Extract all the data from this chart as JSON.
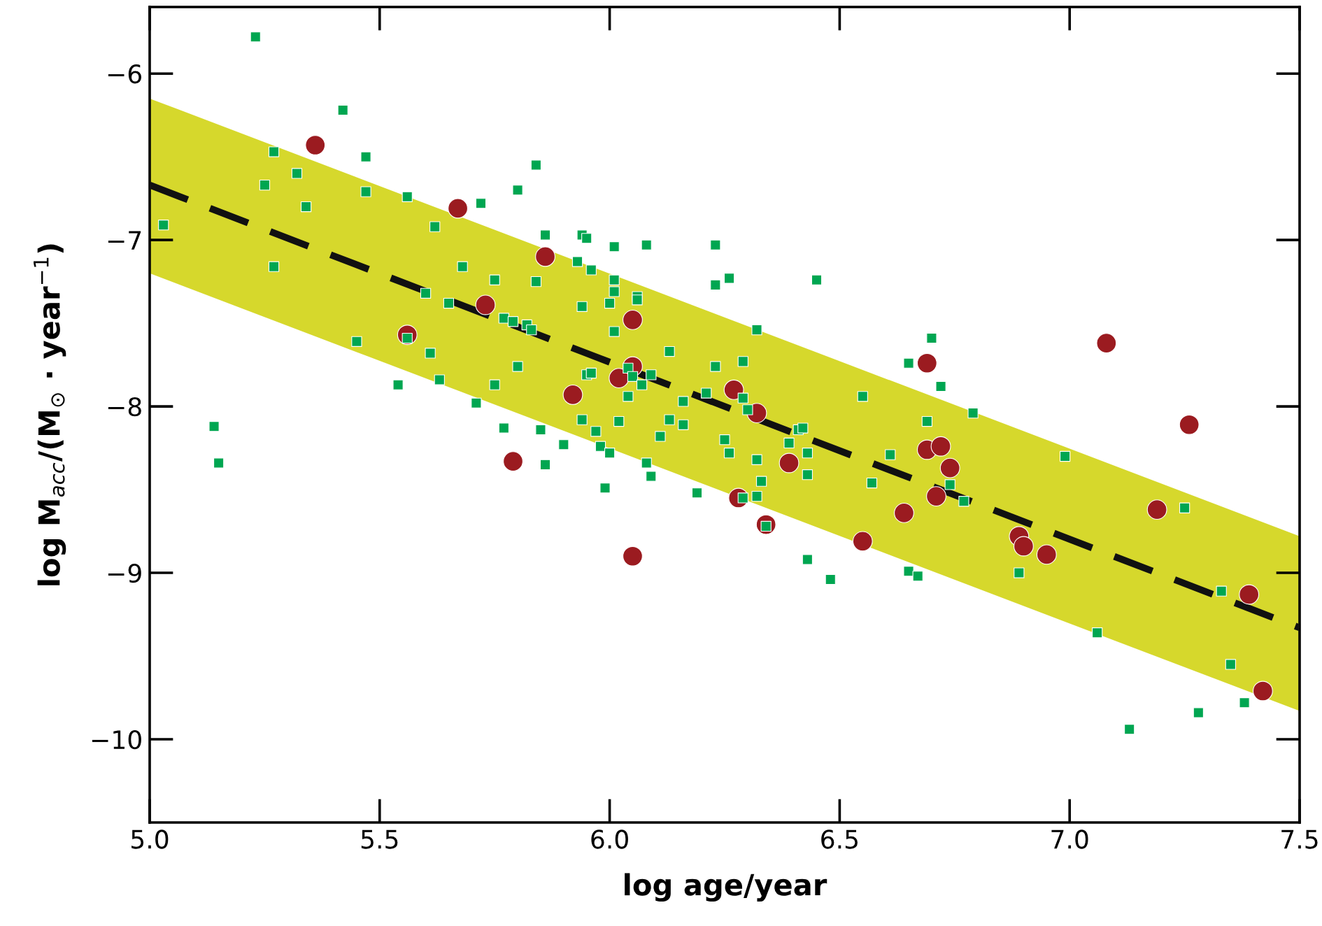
{
  "chart_data": {
    "type": "scatter",
    "xlabel": "log age/year",
    "ylabel": "log M$_{acc}$/(M$_{⊙}$ · year$^{−1}$)",
    "xlim": [
      5.0,
      7.5
    ],
    "ylim": [
      -10.5,
      -5.6
    ],
    "xticks": [
      {
        "value": 5.0,
        "label": "5.0"
      },
      {
        "value": 5.5,
        "label": "5.5"
      },
      {
        "value": 6.0,
        "label": "6.0"
      },
      {
        "value": 6.5,
        "label": "6.5"
      },
      {
        "value": 7.0,
        "label": "7.0"
      },
      {
        "value": 7.5,
        "label": "7.5"
      }
    ],
    "yticks": [
      {
        "value": -10,
        "label": "−10"
      },
      {
        "value": -9,
        "label": "−9"
      },
      {
        "value": -8,
        "label": "−8"
      },
      {
        "value": -7,
        "label": "−7"
      },
      {
        "value": -6,
        "label": "−6"
      }
    ],
    "grid": false,
    "series": [
      {
        "type": "line",
        "color": "#111111",
        "marker": "none",
        "line_style": "dashed",
        "x": [
          5.0,
          7.5
        ],
        "values": [
          -6.67,
          -9.33
        ],
        "lower": [
          -7.2,
          -9.83
        ],
        "upper": [
          -6.15,
          -8.78
        ]
      },
      {
        "marker": "circle",
        "color": "#9b1b20",
        "x": [
          5.36,
          5.67,
          5.86,
          5.73,
          5.56,
          6.05,
          6.05,
          6.02,
          5.92,
          5.79,
          6.05,
          6.27,
          6.32,
          6.39,
          6.28,
          6.34,
          6.55,
          6.69,
          6.69,
          6.72,
          6.74,
          6.71,
          6.64,
          7.08,
          7.26,
          7.19,
          6.89,
          6.9,
          6.95,
          7.39,
          7.42
        ],
        "values": [
          -6.43,
          -6.81,
          -7.1,
          -7.39,
          -7.57,
          -7.48,
          -7.76,
          -7.83,
          -7.93,
          -8.33,
          -8.9,
          -7.9,
          -8.04,
          -8.34,
          -8.55,
          -8.71,
          -8.81,
          -7.74,
          -8.26,
          -8.24,
          -8.37,
          -8.54,
          -8.64,
          -7.62,
          -8.11,
          -8.62,
          -8.78,
          -8.84,
          -8.89,
          -9.13,
          -9.71
        ]
      },
      {
        "marker": "square",
        "color": "#00a651",
        "x": [
          5.23,
          5.42,
          5.27,
          5.47,
          5.32,
          5.25,
          5.47,
          5.34,
          5.56,
          5.03,
          5.62,
          5.27,
          5.6,
          5.65,
          5.45,
          5.56,
          5.61,
          5.54,
          5.63,
          5.14,
          5.15,
          5.84,
          5.8,
          5.72,
          5.86,
          5.94,
          5.95,
          6.01,
          6.08,
          5.68,
          5.75,
          5.84,
          5.93,
          5.96,
          6.01,
          6.01,
          6.06,
          6.06,
          6.0,
          5.94,
          5.77,
          5.79,
          5.82,
          5.83,
          6.01,
          6.13,
          5.8,
          5.75,
          5.95,
          5.96,
          6.04,
          6.05,
          6.07,
          6.09,
          6.04,
          5.71,
          5.94,
          6.02,
          6.13,
          5.97,
          6.11,
          5.77,
          5.85,
          5.9,
          5.98,
          6.0,
          5.86,
          6.08,
          6.09,
          5.99,
          6.23,
          6.23,
          6.26,
          6.45,
          6.32,
          6.7,
          6.65,
          6.72,
          6.23,
          6.29,
          6.21,
          6.16,
          6.29,
          6.3,
          6.16,
          6.55,
          6.41,
          6.42,
          6.25,
          6.26,
          6.39,
          6.43,
          6.32,
          6.43,
          6.33,
          6.19,
          6.29,
          6.32,
          6.34,
          6.57,
          6.61,
          6.69,
          6.74,
          6.77,
          6.43,
          6.48,
          6.65,
          6.67,
          6.79,
          6.99,
          6.89,
          7.06,
          7.25,
          7.33,
          7.35,
          7.38,
          7.28,
          7.13
        ],
        "values": [
          -5.78,
          -6.22,
          -6.47,
          -6.5,
          -6.6,
          -6.67,
          -6.71,
          -6.8,
          -6.74,
          -6.91,
          -6.92,
          -7.16,
          -7.32,
          -7.38,
          -7.61,
          -7.59,
          -7.68,
          -7.87,
          -7.84,
          -8.12,
          -8.34,
          -6.55,
          -6.7,
          -6.78,
          -6.97,
          -6.97,
          -6.99,
          -7.04,
          -7.03,
          -7.16,
          -7.24,
          -7.25,
          -7.13,
          -7.18,
          -7.24,
          -7.31,
          -7.34,
          -7.36,
          -7.38,
          -7.4,
          -7.47,
          -7.49,
          -7.51,
          -7.54,
          -7.55,
          -7.67,
          -7.76,
          -7.87,
          -7.81,
          -7.8,
          -7.77,
          -7.82,
          -7.87,
          -7.81,
          -7.94,
          -7.98,
          -8.08,
          -8.09,
          -8.08,
          -8.15,
          -8.18,
          -8.13,
          -8.14,
          -8.23,
          -8.24,
          -8.28,
          -8.35,
          -8.34,
          -8.42,
          -8.49,
          -7.03,
          -7.27,
          -7.23,
          -7.24,
          -7.54,
          -7.59,
          -7.74,
          -7.88,
          -7.76,
          -7.73,
          -7.92,
          -7.97,
          -7.95,
          -8.02,
          -8.11,
          -7.94,
          -8.14,
          -8.13,
          -8.2,
          -8.28,
          -8.22,
          -8.28,
          -8.32,
          -8.41,
          -8.45,
          -8.52,
          -8.55,
          -8.54,
          -8.72,
          -8.46,
          -8.29,
          -8.09,
          -8.47,
          -8.57,
          -8.92,
          -9.04,
          -8.99,
          -9.02,
          -8.04,
          -8.3,
          -9.0,
          -9.36,
          -8.61,
          -9.11,
          -9.55,
          -9.78,
          -9.84,
          -9.94
        ]
      }
    ]
  }
}
